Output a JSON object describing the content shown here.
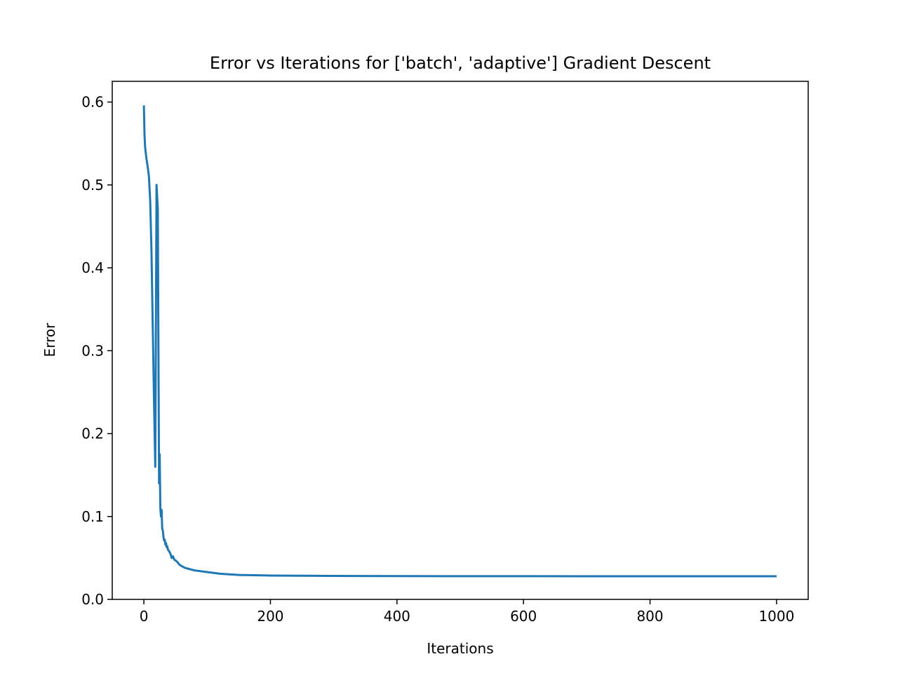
{
  "chart_data": {
    "type": "line",
    "title": "Error vs Iterations for ['batch', 'adaptive'] Gradient Descent",
    "xlabel": "Iterations",
    "ylabel": "Error",
    "xlim": [
      -50,
      1050
    ],
    "ylim": [
      0.0,
      0.625
    ],
    "xticks": [
      0,
      200,
      400,
      600,
      800,
      1000
    ],
    "xtick_labels": [
      "0",
      "200",
      "400",
      "600",
      "800",
      "1000"
    ],
    "yticks": [
      0.0,
      0.1,
      0.2,
      0.3,
      0.4,
      0.5,
      0.6
    ],
    "ytick_labels": [
      "0.0",
      "0.1",
      "0.2",
      "0.3",
      "0.4",
      "0.5",
      "0.6"
    ],
    "grid": false,
    "line_color": "#1f77b4",
    "series": [
      {
        "x": [
          0,
          1,
          2,
          4,
          6,
          8,
          10,
          12,
          14,
          16,
          18,
          20,
          22,
          24,
          25,
          26,
          27,
          28,
          29,
          30,
          31,
          32,
          33,
          34,
          35,
          36,
          37,
          38,
          40,
          42,
          44,
          46,
          48,
          50,
          53,
          56,
          60,
          65,
          70,
          75,
          80,
          90,
          100,
          120,
          150,
          200,
          300,
          400,
          500,
          600,
          700,
          800,
          900,
          1000
        ],
        "y": [
          0.596,
          0.56,
          0.545,
          0.532,
          0.522,
          0.51,
          0.48,
          0.42,
          0.33,
          0.24,
          0.16,
          0.5,
          0.47,
          0.14,
          0.175,
          0.11,
          0.1,
          0.108,
          0.085,
          0.083,
          0.075,
          0.071,
          0.072,
          0.066,
          0.068,
          0.063,
          0.064,
          0.06,
          0.058,
          0.055,
          0.05,
          0.052,
          0.048,
          0.047,
          0.045,
          0.042,
          0.04,
          0.038,
          0.037,
          0.036,
          0.035,
          0.034,
          0.033,
          0.031,
          0.0295,
          0.0288,
          0.0283,
          0.0281,
          0.028,
          0.028,
          0.0279,
          0.0279,
          0.0279,
          0.0279
        ]
      }
    ]
  }
}
